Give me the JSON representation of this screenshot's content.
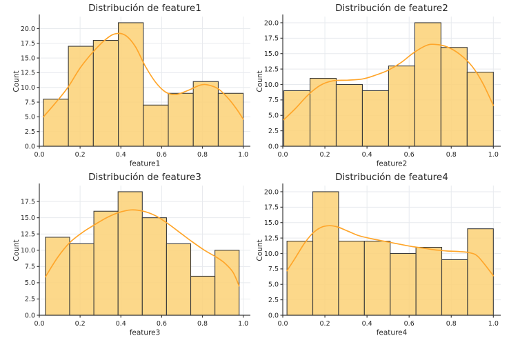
{
  "figure": {
    "background": "#ffffff",
    "grid_color": "#e7eaee",
    "spine_color": "#3b3b3b",
    "text_color": "#262626"
  },
  "chart_data": [
    {
      "type": "bar",
      "subtype": "histogram_with_kde",
      "title": "Distribución de feature1",
      "xlabel": "feature1",
      "ylabel": "Count",
      "bins": {
        "start": 0.02,
        "end": 1.0
      },
      "counts": [
        8,
        17,
        18,
        21,
        7,
        9,
        11,
        9
      ],
      "kde_points": [
        [
          0.02,
          5.0
        ],
        [
          0.08,
          7.4
        ],
        [
          0.14,
          10.0
        ],
        [
          0.2,
          13.3
        ],
        [
          0.26,
          15.9
        ],
        [
          0.32,
          18.0
        ],
        [
          0.37,
          19.1
        ],
        [
          0.42,
          18.9
        ],
        [
          0.47,
          17.0
        ],
        [
          0.52,
          13.6
        ],
        [
          0.57,
          10.9
        ],
        [
          0.62,
          9.2
        ],
        [
          0.67,
          8.8
        ],
        [
          0.73,
          9.5
        ],
        [
          0.79,
          10.4
        ],
        [
          0.83,
          10.4
        ],
        [
          0.88,
          9.7
        ],
        [
          0.93,
          8.0
        ],
        [
          0.97,
          6.2
        ],
        [
          1.0,
          4.6
        ]
      ],
      "xticks": [
        0.0,
        0.2,
        0.4,
        0.6,
        0.8,
        1.0
      ],
      "yticks": [
        0.0,
        2.5,
        5.0,
        7.5,
        10.0,
        12.5,
        15.0,
        17.5,
        20.0
      ],
      "xlim": [
        0,
        1.035
      ],
      "ylim": [
        0,
        22.05
      ],
      "grid": true,
      "bar_color": "#fbd176",
      "bar_edge_color": "#3a3a3a",
      "kde_color": "#ffa62b"
    },
    {
      "type": "bar",
      "subtype": "histogram_with_kde",
      "title": "Distribución de feature2",
      "xlabel": "feature2",
      "ylabel": "Count",
      "bins": {
        "start": 0.005,
        "end": 1.0
      },
      "counts": [
        9,
        11,
        10,
        9,
        13,
        20,
        16,
        12
      ],
      "kde_points": [
        [
          0.005,
          4.3
        ],
        [
          0.06,
          6.1
        ],
        [
          0.12,
          8.3
        ],
        [
          0.18,
          9.9
        ],
        [
          0.24,
          10.6
        ],
        [
          0.31,
          10.7
        ],
        [
          0.38,
          10.9
        ],
        [
          0.44,
          11.5
        ],
        [
          0.5,
          12.3
        ],
        [
          0.56,
          13.5
        ],
        [
          0.62,
          15.1
        ],
        [
          0.68,
          16.3
        ],
        [
          0.72,
          16.5
        ],
        [
          0.78,
          16.1
        ],
        [
          0.84,
          14.9
        ],
        [
          0.9,
          12.9
        ],
        [
          0.95,
          10.2
        ],
        [
          1.0,
          6.6
        ]
      ],
      "xticks": [
        0.0,
        0.2,
        0.4,
        0.6,
        0.8,
        1.0
      ],
      "yticks": [
        0.0,
        2.5,
        5.0,
        7.5,
        10.0,
        12.5,
        15.0,
        17.5,
        20.0
      ],
      "xlim": [
        0,
        1.035
      ],
      "ylim": [
        0,
        21.0
      ],
      "grid": true,
      "bar_color": "#fbd176",
      "bar_edge_color": "#3a3a3a",
      "kde_color": "#ffa62b"
    },
    {
      "type": "bar",
      "subtype": "histogram_with_kde",
      "title": "Distribución de feature3",
      "xlabel": "feature3",
      "ylabel": "Count",
      "bins": {
        "start": 0.03,
        "end": 0.98
      },
      "counts": [
        12,
        11,
        16,
        19,
        15,
        11,
        6,
        10
      ],
      "kde_points": [
        [
          0.03,
          5.9
        ],
        [
          0.09,
          8.9
        ],
        [
          0.15,
          11.2
        ],
        [
          0.21,
          12.7
        ],
        [
          0.27,
          13.9
        ],
        [
          0.33,
          15.0
        ],
        [
          0.39,
          15.8
        ],
        [
          0.45,
          16.2
        ],
        [
          0.51,
          16.0
        ],
        [
          0.57,
          15.3
        ],
        [
          0.63,
          14.1
        ],
        [
          0.69,
          12.7
        ],
        [
          0.75,
          11.3
        ],
        [
          0.81,
          10.0
        ],
        [
          0.87,
          8.9
        ],
        [
          0.91,
          8.0
        ],
        [
          0.95,
          6.6
        ],
        [
          0.98,
          4.5
        ]
      ],
      "xticks": [
        0.0,
        0.2,
        0.4,
        0.6,
        0.8,
        1.0
      ],
      "yticks": [
        0.0,
        2.5,
        5.0,
        7.5,
        10.0,
        12.5,
        15.0,
        17.5
      ],
      "xlim": [
        0,
        1.035
      ],
      "ylim": [
        0,
        19.95
      ],
      "grid": true,
      "bar_color": "#fbd176",
      "bar_edge_color": "#3a3a3a",
      "kde_color": "#ffa62b"
    },
    {
      "type": "bar",
      "subtype": "histogram_with_kde",
      "title": "Distribución de feature4",
      "xlabel": "feature4",
      "ylabel": "Count",
      "bins": {
        "start": 0.02,
        "end": 1.0
      },
      "counts": [
        12,
        20,
        12,
        12,
        10,
        11,
        9,
        14
      ],
      "kde_points": [
        [
          0.02,
          7.2
        ],
        [
          0.06,
          9.3
        ],
        [
          0.1,
          11.5
        ],
        [
          0.14,
          13.2
        ],
        [
          0.18,
          14.2
        ],
        [
          0.22,
          14.5
        ],
        [
          0.26,
          14.3
        ],
        [
          0.31,
          13.6
        ],
        [
          0.36,
          12.9
        ],
        [
          0.42,
          12.4
        ],
        [
          0.48,
          12.0
        ],
        [
          0.54,
          11.6
        ],
        [
          0.6,
          11.2
        ],
        [
          0.66,
          10.9
        ],
        [
          0.72,
          10.6
        ],
        [
          0.78,
          10.4
        ],
        [
          0.84,
          10.3
        ],
        [
          0.89,
          10.1
        ],
        [
          0.93,
          9.4
        ],
        [
          1.0,
          6.4
        ]
      ],
      "xticks": [
        0.0,
        0.2,
        0.4,
        0.6,
        0.8,
        1.0
      ],
      "yticks": [
        0.0,
        2.5,
        5.0,
        7.5,
        10.0,
        12.5,
        15.0,
        17.5,
        20.0
      ],
      "xlim": [
        0,
        1.035
      ],
      "ylim": [
        0,
        21.0
      ],
      "grid": true,
      "bar_color": "#fbd176",
      "bar_edge_color": "#3a3a3a",
      "kde_color": "#ffa62b"
    }
  ]
}
